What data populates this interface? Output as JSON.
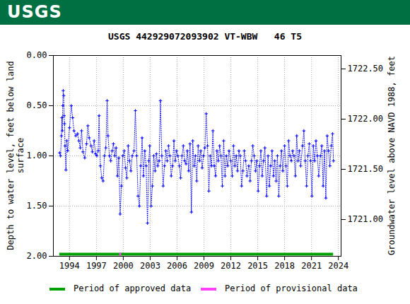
{
  "header": {
    "logo": "USGS"
  },
  "chart_data": {
    "type": "line",
    "title": "USGS 442929072093902 VT-WBW   46 T5",
    "y_label": "Depth to water level, feet below land surface",
    "y2_label": "Groundwater level above NAVD 1988, feet",
    "xlim": [
      1992.2,
      2024.3
    ],
    "xticks": [
      1994,
      1997,
      2000,
      2003,
      2006,
      2009,
      2012,
      2015,
      2018,
      2021,
      2024
    ],
    "ylim": [
      2.0,
      0.0
    ],
    "yticks": [
      {
        "value": 0,
        "label": "0.00"
      },
      {
        "value": 0.5,
        "label": "0.50"
      },
      {
        "value": 1,
        "label": "1.00"
      },
      {
        "value": 1.5,
        "label": "1.50"
      },
      {
        "value": 2,
        "label": "2.00"
      }
    ],
    "y2lim": [
      1720.634,
      1722.634
    ],
    "y2ticks": [
      {
        "value": 1721,
        "label": "1721.00"
      },
      {
        "value": 1721.5,
        "label": "1721.50"
      },
      {
        "value": 1722,
        "label": "1722.00"
      },
      {
        "value": 1722.5,
        "label": "1722.50"
      }
    ],
    "grid": true,
    "x": [
      1992.9,
      1993.0,
      1993.1,
      1993.15,
      1993.2,
      1993.25,
      1993.3,
      1993.35,
      1993.4,
      1993.45,
      1993.5,
      1993.6,
      1993.7,
      1993.8,
      1994.0,
      1994.2,
      1994.35,
      1994.5,
      1994.7,
      1994.9,
      1995.05,
      1995.2,
      1995.35,
      1995.5,
      1995.7,
      1995.9,
      1996.05,
      1996.2,
      1996.4,
      1996.55,
      1996.75,
      1996.9,
      1997.05,
      1997.2,
      1997.3,
      1997.45,
      1997.6,
      1997.75,
      1997.9,
      1998.05,
      1998.2,
      1998.3,
      1998.45,
      1998.6,
      1998.75,
      1998.9,
      1999.05,
      1999.2,
      1999.35,
      1999.5,
      1999.65,
      1999.8,
      1999.95,
      2000.1,
      2000.25,
      2000.4,
      2000.55,
      2000.7,
      2000.85,
      2001.0,
      2001.2,
      2001.35,
      2001.5,
      2001.65,
      2001.8,
      2001.95,
      2002.1,
      2002.25,
      2002.4,
      2002.55,
      2002.7,
      2002.85,
      2002.95,
      2003.1,
      2003.25,
      2003.4,
      2003.55,
      2003.7,
      2003.85,
      2004.0,
      2004.15,
      2004.3,
      2004.45,
      2004.6,
      2004.75,
      2004.9,
      2005.05,
      2005.2,
      2005.35,
      2005.5,
      2005.65,
      2005.8,
      2005.95,
      2006.1,
      2006.25,
      2006.4,
      2006.55,
      2006.7,
      2006.85,
      2007.0,
      2007.15,
      2007.3,
      2007.45,
      2007.6,
      2007.75,
      2007.9,
      2008.05,
      2008.2,
      2008.35,
      2008.5,
      2008.65,
      2008.8,
      2008.95,
      2009.1,
      2009.25,
      2009.4,
      2009.55,
      2009.7,
      2009.85,
      2010.0,
      2010.15,
      2010.3,
      2010.45,
      2010.6,
      2010.75,
      2010.9,
      2011.05,
      2011.2,
      2011.35,
      2011.5,
      2011.65,
      2011.8,
      2012.0,
      2012.15,
      2012.3,
      2012.45,
      2012.6,
      2012.75,
      2012.9,
      2013.05,
      2013.2,
      2013.35,
      2013.5,
      2013.65,
      2013.8,
      2014.0,
      2014.15,
      2014.3,
      2014.45,
      2014.6,
      2014.75,
      2014.9,
      2015.05,
      2015.2,
      2015.35,
      2015.5,
      2015.65,
      2015.8,
      2016.0,
      2016.15,
      2016.3,
      2016.45,
      2016.6,
      2016.75,
      2016.9,
      2017.05,
      2017.2,
      2017.35,
      2017.5,
      2017.65,
      2017.8,
      2018.0,
      2018.15,
      2018.3,
      2018.45,
      2018.6,
      2018.75,
      2018.9,
      2019.05,
      2019.2,
      2019.35,
      2019.5,
      2019.65,
      2019.8,
      2020.0,
      2020.15,
      2020.3,
      2020.45,
      2020.6,
      2020.75,
      2020.9,
      2021.05,
      2021.2,
      2021.35,
      2021.5,
      2021.65,
      2021.8,
      2022.0,
      2022.15,
      2022.3,
      2022.45,
      2022.6,
      2022.75,
      2022.9,
      2023.05,
      2023.2,
      2023.35,
      2023.45
    ],
    "series": [
      {
        "color": "#0000ff",
        "marker": "plus",
        "line_style": "dotted",
        "values": [
          0.97,
          1.0,
          0.8,
          0.62,
          0.75,
          0.5,
          0.35,
          0.4,
          0.6,
          0.68,
          0.9,
          1.14,
          0.85,
          0.95,
          0.72,
          0.5,
          0.62,
          0.75,
          0.8,
          0.78,
          0.85,
          0.92,
          0.75,
          0.96,
          1.02,
          0.88,
          0.7,
          0.82,
          0.9,
          0.96,
          0.85,
          0.98,
          1.0,
          0.95,
          0.6,
          1.1,
          1.22,
          1.25,
          1.0,
          0.92,
          0.45,
          0.8,
          1.0,
          1.05,
          0.95,
          0.88,
          1.0,
          0.92,
          1.2,
          1.02,
          1.58,
          1.3,
          1.0,
          0.95,
          1.12,
          1.22,
          0.9,
          1.05,
          1.15,
          1.0,
          0.95,
          0.55,
          1.0,
          1.4,
          1.5,
          1.1,
          0.82,
          1.2,
          0.95,
          1.1,
          1.67,
          1.05,
          0.9,
          1.5,
          1.3,
          1.0,
          1.15,
          0.98,
          1.1,
          1.05,
          0.45,
          1.0,
          1.3,
          1.1,
          0.95,
          1.05,
          0.9,
          1.0,
          1.2,
          1.1,
          0.85,
          1.05,
          0.95,
          1.0,
          1.1,
          1.22,
          1.0,
          0.9,
          1.05,
          1.08,
          0.95,
          1.15,
          0.88,
          1.56,
          0.85,
          1.1,
          1.0,
          1.25,
          0.9,
          1.05,
          0.95,
          1.12,
          1.0,
          0.92,
          0.58,
          0.9,
          1.35,
          1.0,
          1.1,
          0.75,
          1.1,
          1.2,
          0.95,
          1.05,
          0.9,
          1.0,
          1.3,
          0.85,
          1.2,
          1.0,
          1.1,
          0.95,
          1.05,
          1.2,
          0.9,
          1.1,
          1.0,
          1.15,
          0.95,
          1.0,
          1.3,
          1.15,
          0.95,
          1.05,
          1.2,
          1.1,
          1.25,
          1.05,
          0.9,
          1.0,
          1.15,
          1.05,
          1.35,
          1.1,
          0.95,
          1.2,
          1.05,
          0.92,
          1.4,
          1.0,
          1.3,
          1.1,
          0.95,
          1.2,
          1.05,
          1.25,
          1.0,
          1.4,
          1.1,
          0.95,
          1.15,
          0.9,
          1.1,
          1.3,
          0.85,
          1.0,
          1.05,
          0.95,
          1.0,
          1.2,
          0.8,
          1.05,
          0.95,
          1.1,
          0.9,
          0.75,
          1.05,
          1.3,
          1.0,
          0.88,
          1.05,
          1.4,
          0.9,
          1.05,
          0.85,
          1.0,
          1.2,
          1.0,
          0.9,
          1.3,
          0.95,
          1.42,
          0.8,
          0.95,
          1.1,
          0.9,
          0.78,
          1.05
        ]
      }
    ],
    "periods": [
      {
        "name": "Period of approved data",
        "color": "#00a000",
        "ranges": [
          [
            1992.9,
            2023.45
          ]
        ]
      },
      {
        "name": "Period of provisional data",
        "color": "#ff40ff",
        "ranges": [
          [
            1999.6,
            1999.8
          ]
        ]
      }
    ]
  }
}
